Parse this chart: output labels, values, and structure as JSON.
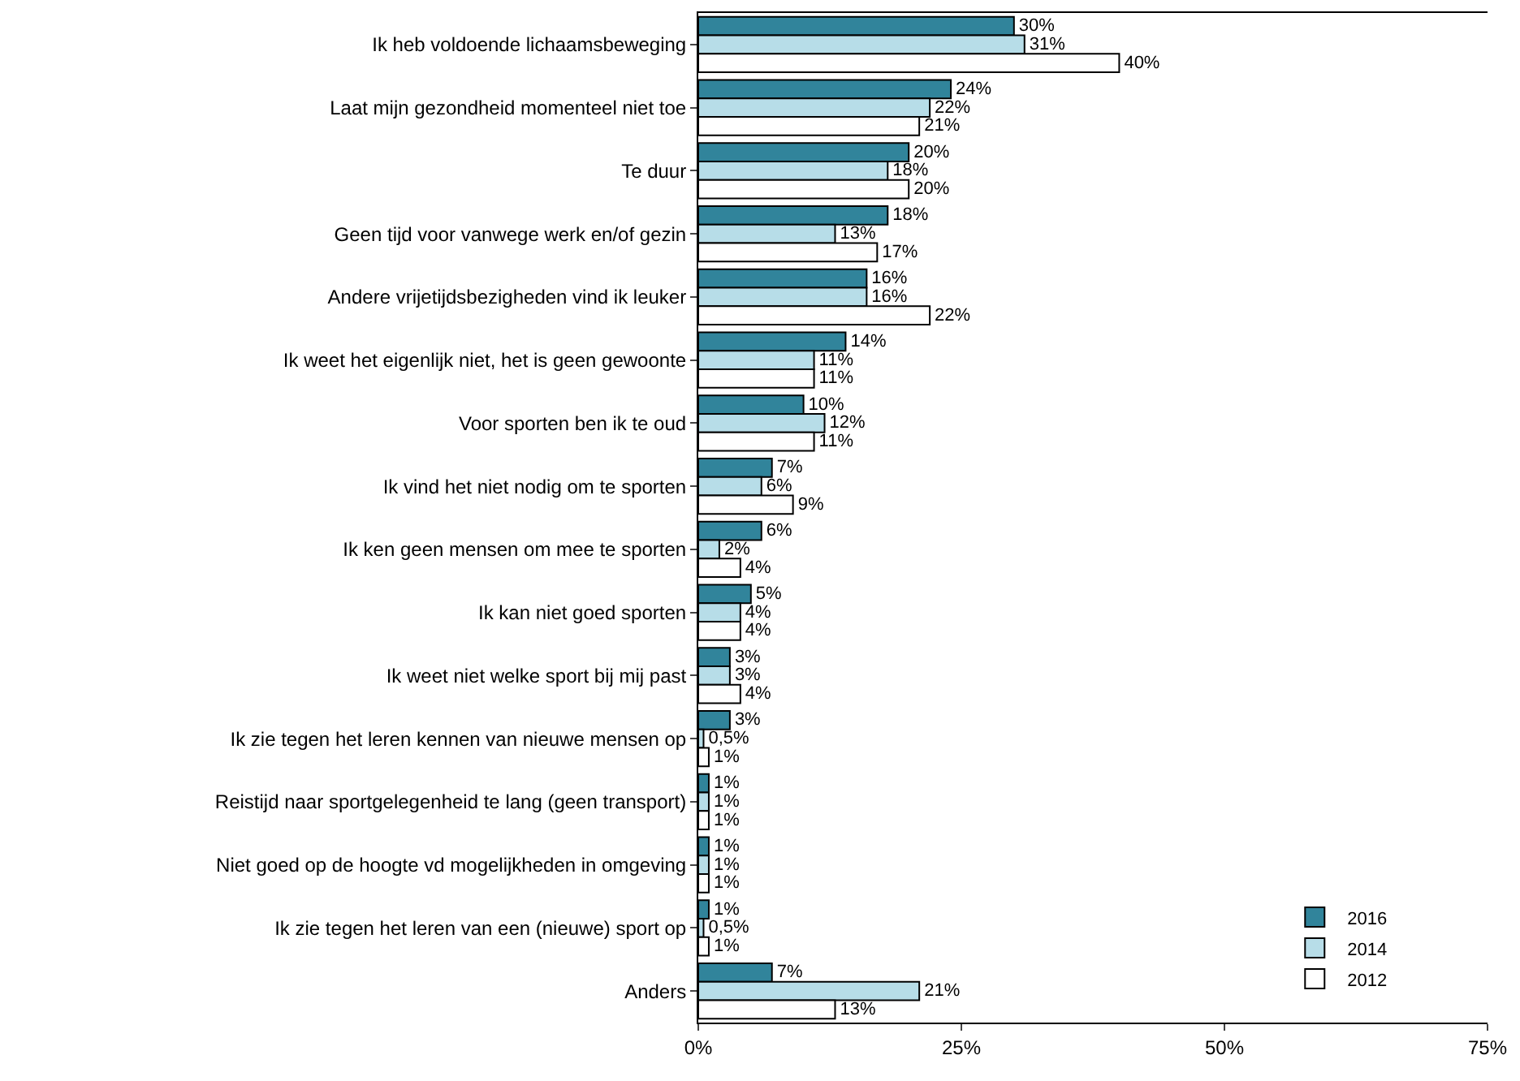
{
  "chart_data": {
    "type": "bar",
    "orientation": "horizontal",
    "categories": [
      "Ik heb voldoende lichaamsbeweging",
      "Laat mijn gezondheid momenteel niet toe",
      "Te duur",
      "Geen tijd voor vanwege werk en/of gezin",
      "Andere vrijetijdsbezigheden vind ik leuker",
      "Ik weet het eigenlijk niet, het is geen gewoonte",
      "Voor sporten ben ik te oud",
      "Ik vind het niet nodig om te sporten",
      "Ik ken geen mensen om mee te sporten",
      "Ik kan niet goed sporten",
      "Ik weet niet welke sport bij mij past",
      "Ik zie tegen het leren kennen van nieuwe mensen op",
      "Reistijd naar sportgelegenheid te lang (geen transport)",
      "Niet goed op de hoogte vd mogelijkheden in omgeving",
      "Ik zie tegen het leren van een (nieuwe) sport op",
      "Anders"
    ],
    "series": [
      {
        "name": "2016",
        "color": "#31849b",
        "values": [
          30,
          24,
          20,
          18,
          16,
          14,
          10,
          7,
          6,
          5,
          3,
          3,
          1,
          1,
          1,
          7
        ],
        "value_labels": [
          "30%",
          "24%",
          "20%",
          "18%",
          "16%",
          "14%",
          "10%",
          "7%",
          "6%",
          "5%",
          "3%",
          "3%",
          "1%",
          "1%",
          "1%",
          "7%"
        ]
      },
      {
        "name": "2014",
        "color": "#b7dde8",
        "values": [
          31,
          22,
          18,
          13,
          16,
          11,
          12,
          6,
          2,
          4,
          3,
          0.5,
          1,
          1,
          0.5,
          21
        ],
        "value_labels": [
          "31%",
          "22%",
          "18%",
          "13%",
          "16%",
          "11%",
          "12%",
          "6%",
          "2%",
          "4%",
          "3%",
          "0,5%",
          "1%",
          "1%",
          "0,5%",
          "21%"
        ]
      },
      {
        "name": "2012",
        "color": "#ffffff",
        "values": [
          40,
          21,
          20,
          17,
          22,
          11,
          11,
          9,
          4,
          4,
          4,
          1,
          1,
          1,
          1,
          13
        ],
        "value_labels": [
          "40%",
          "21%",
          "20%",
          "17%",
          "22%",
          "11%",
          "11%",
          "9%",
          "4%",
          "4%",
          "4%",
          "1%",
          "1%",
          "1%",
          "1%",
          "13%"
        ]
      }
    ],
    "xlim": [
      0,
      75
    ],
    "xticks": [
      {
        "value": 0,
        "label": "0%"
      },
      {
        "value": 25,
        "label": "25%"
      },
      {
        "value": 50,
        "label": "50%"
      },
      {
        "value": 75,
        "label": "75%"
      }
    ],
    "grid": false,
    "legend": "bottom right"
  }
}
